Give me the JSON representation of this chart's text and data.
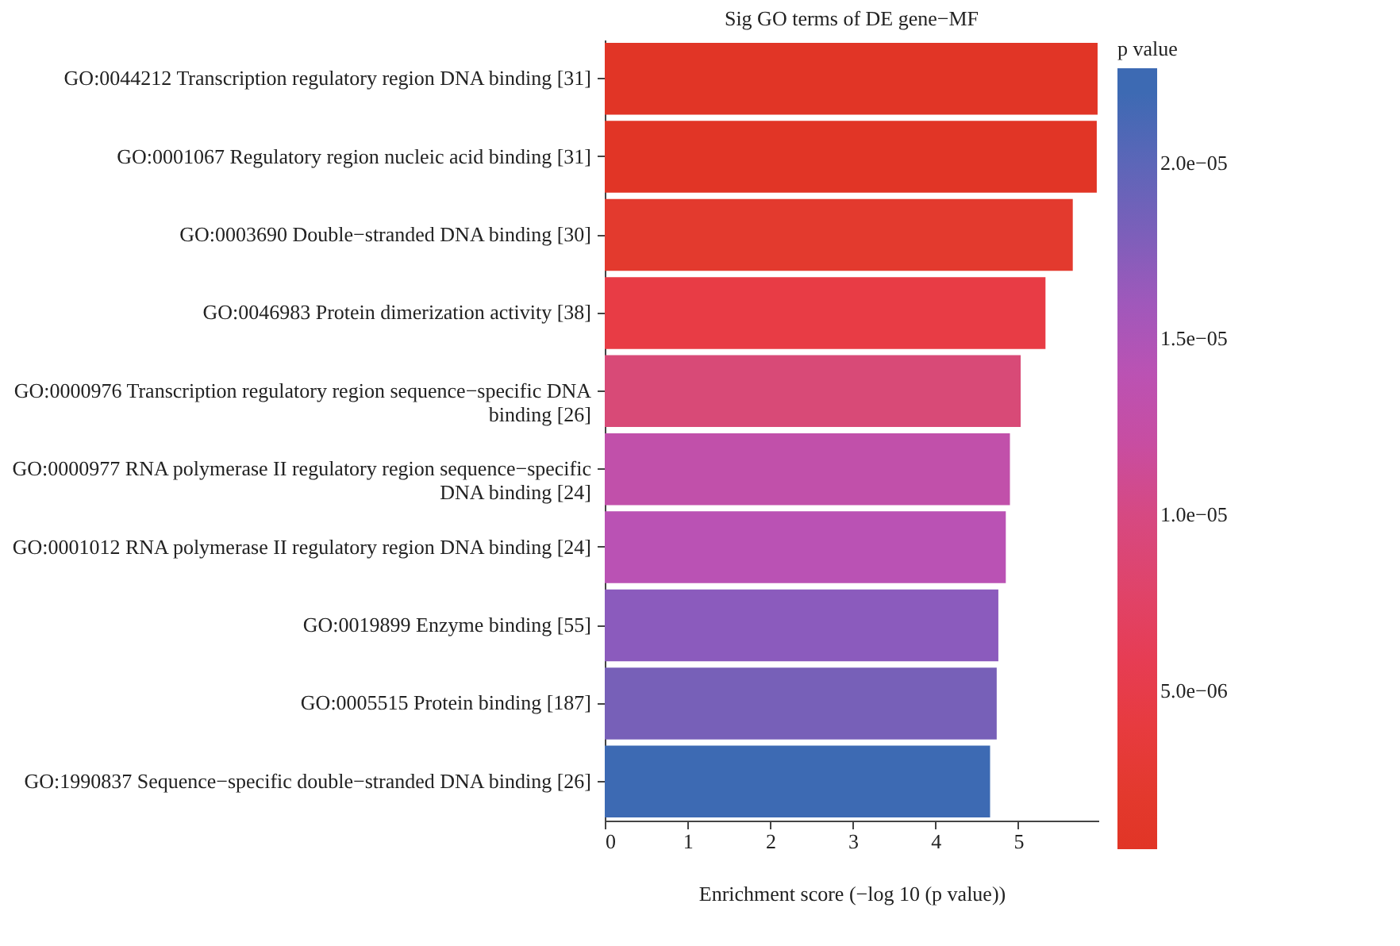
{
  "chart_data": {
    "type": "bar",
    "orientation": "horizontal",
    "title": "Sig GO terms of DE gene−MF",
    "xlabel": "Enrichment score (−log 10 (p value))",
    "clabel": "p value",
    "categories": [
      "GO:0044212 Transcription regulatory region DNA binding [31]",
      "GO:0001067 Regulatory region nucleic acid binding [31]",
      "GO:0003690 Double−stranded DNA binding [30]",
      "GO:0046983 Protein dimerization activity [38]",
      "GO:0000976 Transcription regulatory region sequence−specific DNA binding [26]",
      "GO:0000977 RNA polymerase II regulatory region sequence−specific DNA binding [24]",
      "GO:0001012 RNA polymerase II regulatory region DNA binding [24]",
      "GO:0019899 Enzyme binding [55]",
      "GO:0005515 Protein binding [187]",
      "GO:1990837 Sequence−specific double−stranded DNA binding [26]"
    ],
    "values": [
      5.96,
      5.95,
      5.66,
      5.33,
      5.03,
      4.9,
      4.85,
      4.76,
      4.74,
      4.66
    ],
    "cvalues": [
      1.1e-06,
      1.12e-06,
      2.19e-06,
      4.7e-06,
      9.3e-06,
      1.26e-05,
      1.41e-05,
      1.74e-05,
      1.82e-05,
      2.19e-05
    ],
    "colors": [
      "#e13526",
      "#e13526",
      "#e33a2e",
      "#e83c45",
      "#d84a77",
      "#c150aa",
      "#ba52b4",
      "#8b5bbd",
      "#7760b8",
      "#3d6ab3"
    ],
    "xlim": [
      0,
      5.97
    ],
    "xticks": [
      0,
      1,
      2,
      3,
      4,
      5
    ],
    "clim": [
      5e-07,
      2.27e-05
    ],
    "cticks": [
      {
        "value": 5e-06,
        "label": "5.0e−06"
      },
      {
        "value": 1e-05,
        "label": "1.0e−05"
      },
      {
        "value": 1.5e-05,
        "label": "1.5e−05"
      },
      {
        "value": 2e-05,
        "label": "2.0e−05"
      }
    ],
    "grid": false
  }
}
